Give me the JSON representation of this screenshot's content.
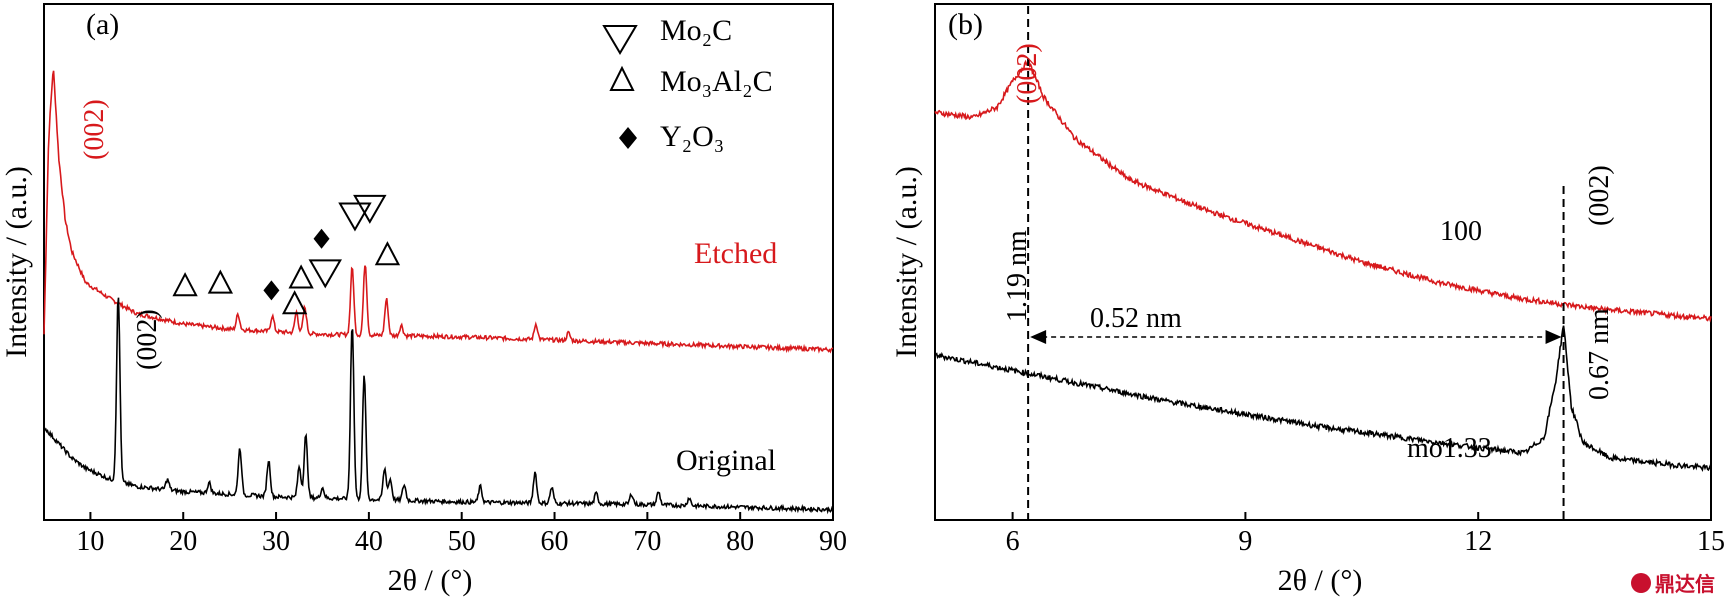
{
  "chart_data": [
    {
      "panel": "(a)",
      "type": "line",
      "title": "",
      "xlabel": "2θ / (°)",
      "ylabel": "Intensity / (a.u.)",
      "xlim": [
        5,
        90
      ],
      "xticks": [
        10,
        20,
        30,
        40,
        50,
        60,
        70,
        80,
        90
      ],
      "series": [
        {
          "name": "Etched",
          "color": "#d7191c",
          "baseline": 0.36,
          "points": [
            [
              5,
              0.36
            ],
            [
              5.5,
              0.74
            ],
            [
              6.0,
              0.88
            ],
            [
              6.6,
              0.7
            ],
            [
              7.3,
              0.58
            ],
            [
              8.0,
              0.52
            ],
            [
              9.5,
              0.46
            ],
            [
              12,
              0.43
            ],
            [
              15,
              0.4
            ],
            [
              20,
              0.38
            ],
            [
              25,
              0.37
            ],
            [
              35,
              0.36
            ],
            [
              50,
              0.355
            ],
            [
              90,
              0.33
            ]
          ],
          "peaks": [
            [
              25.9,
              0.03
            ],
            [
              29.6,
              0.03
            ],
            [
              32.2,
              0.04
            ],
            [
              33.1,
              0.05
            ],
            [
              38.2,
              0.13
            ],
            [
              39.6,
              0.14
            ],
            [
              41.9,
              0.07
            ],
            [
              43.5,
              0.02
            ],
            [
              58.0,
              0.03
            ],
            [
              61.5,
              0.015
            ]
          ]
        },
        {
          "name": "Original",
          "color": "#000000",
          "baseline": 0.02,
          "points": [
            [
              5,
              0.18
            ],
            [
              6.5,
              0.15
            ],
            [
              8,
              0.12
            ],
            [
              9.5,
              0.1
            ],
            [
              12,
              0.08
            ],
            [
              15,
              0.065
            ],
            [
              20,
              0.055
            ],
            [
              30,
              0.045
            ],
            [
              50,
              0.035
            ],
            [
              70,
              0.03
            ],
            [
              90,
              0.02
            ]
          ],
          "peaks": [
            [
              13.0,
              0.36
            ],
            [
              18.3,
              0.02
            ],
            [
              22.8,
              0.02
            ],
            [
              26.1,
              0.09
            ],
            [
              29.2,
              0.07
            ],
            [
              32.5,
              0.06
            ],
            [
              33.2,
              0.12
            ],
            [
              35.0,
              0.02
            ],
            [
              38.2,
              0.34
            ],
            [
              39.5,
              0.24
            ],
            [
              41.7,
              0.06
            ],
            [
              42.3,
              0.04
            ],
            [
              43.8,
              0.03
            ],
            [
              52.0,
              0.03
            ],
            [
              57.9,
              0.06
            ],
            [
              59.7,
              0.03
            ],
            [
              64.5,
              0.02
            ],
            [
              68.3,
              0.02
            ],
            [
              71.2,
              0.025
            ],
            [
              74.5,
              0.015
            ]
          ]
        }
      ],
      "annotations": {
        "panel_label": "(a)",
        "peak_002_etched": "(002)",
        "peak_002_original": "(002)",
        "label_etched": "Etched",
        "label_original": "Original"
      },
      "legend": [
        {
          "marker": "open-down-triangle",
          "label": "Mo₂C"
        },
        {
          "marker": "open-up-triangle",
          "label": "Mo₃Al₂C"
        },
        {
          "marker": "filled-diamond",
          "label": "Y₂O₃"
        }
      ],
      "markers": [
        {
          "type": "open-up-triangle",
          "x": 20.2,
          "y": 0.455
        },
        {
          "type": "open-up-triangle",
          "x": 24.0,
          "y": 0.46
        },
        {
          "type": "filled-diamond",
          "x": 29.5,
          "y": 0.445
        },
        {
          "type": "open-up-triangle",
          "x": 32.0,
          "y": 0.42
        },
        {
          "type": "open-up-triangle",
          "x": 32.7,
          "y": 0.47
        },
        {
          "type": "filled-diamond",
          "x": 34.9,
          "y": 0.545
        },
        {
          "type": "open-down-triangle",
          "x": 35.3,
          "y": 0.48
        },
        {
          "type": "open-down-triangle",
          "x": 38.5,
          "y": 0.59
        },
        {
          "type": "open-down-triangle",
          "x": 40.1,
          "y": 0.605
        },
        {
          "type": "open-up-triangle",
          "x": 42.0,
          "y": 0.515
        }
      ]
    },
    {
      "panel": "(b)",
      "type": "line",
      "title": "",
      "xlabel": "2θ / (°)",
      "ylabel": "Intensity / (a.u.)",
      "xlim": [
        5,
        15
      ],
      "xticks": [
        6,
        9,
        12,
        15
      ],
      "series": [
        {
          "name": "Etched",
          "color": "#d7191c",
          "points": [
            [
              5,
              0.79
            ],
            [
              5.5,
              0.78
            ],
            [
              5.8,
              0.8
            ],
            [
              6.0,
              0.85
            ],
            [
              6.2,
              0.89
            ],
            [
              6.4,
              0.82
            ],
            [
              6.8,
              0.74
            ],
            [
              7.5,
              0.66
            ],
            [
              8.5,
              0.6
            ],
            [
              9.5,
              0.55
            ],
            [
              10.5,
              0.5
            ],
            [
              11.5,
              0.46
            ],
            [
              12.5,
              0.43
            ],
            [
              13.5,
              0.41
            ],
            [
              15,
              0.39
            ]
          ]
        },
        {
          "name": "Original",
          "color": "#000000",
          "points": [
            [
              5,
              0.32
            ],
            [
              6,
              0.29
            ],
            [
              7,
              0.26
            ],
            [
              8,
              0.23
            ],
            [
              9,
              0.205
            ],
            [
              10,
              0.18
            ],
            [
              11,
              0.16
            ],
            [
              12,
              0.14
            ],
            [
              12.6,
              0.13
            ],
            [
              12.85,
              0.16
            ],
            [
              13.0,
              0.27
            ],
            [
              13.1,
              0.38
            ],
            [
              13.2,
              0.22
            ],
            [
              13.35,
              0.15
            ],
            [
              13.7,
              0.12
            ],
            [
              14.3,
              0.11
            ],
            [
              15,
              0.1
            ]
          ]
        }
      ],
      "annotations": {
        "panel_label": "(b)",
        "peak_002_etched": "(002)",
        "peak_002_original": "(002)",
        "d_spacing_etched": "1.19 nm",
        "d_spacing_original": "0.67 nm",
        "shift": "0.52 nm",
        "label_etched": "100",
        "label_original": "mo1.33",
        "dashed_x": [
          6.2,
          13.1
        ]
      }
    }
  ],
  "watermark": {
    "text": "鼎达信",
    "color": "#c8102e"
  }
}
